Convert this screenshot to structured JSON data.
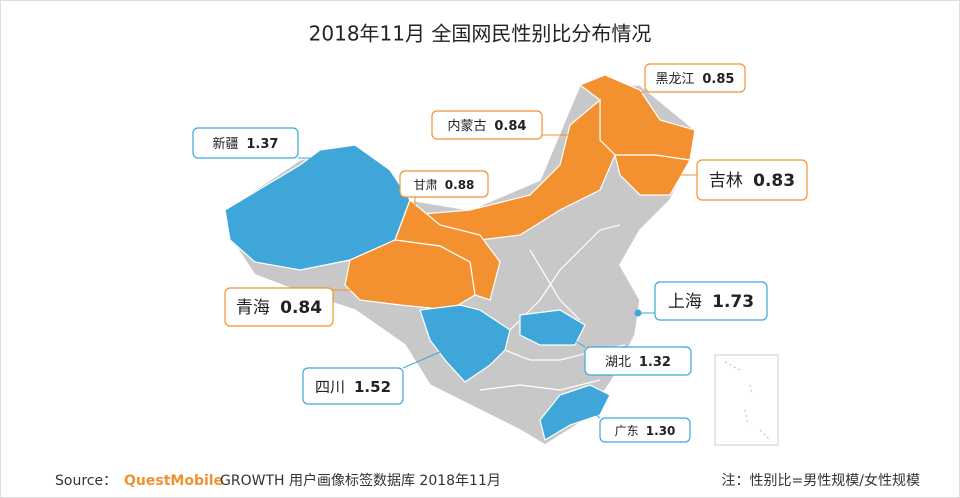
{
  "chart_data": {
    "type": "map",
    "title": "2018年11月 全国网民性别比分布情况",
    "categories": [
      "黑龙江",
      "内蒙古",
      "新疆",
      "甘肃",
      "吉林",
      "青海",
      "上海",
      "四川",
      "湖北",
      "广东"
    ],
    "values": [
      0.85,
      0.84,
      1.37,
      0.88,
      0.83,
      0.84,
      1.73,
      1.52,
      1.32,
      1.3
    ],
    "value_labels": [
      "0.85",
      "0.84",
      "1.37",
      "0.88",
      "0.83",
      "0.84",
      "1.73",
      "1.52",
      "1.32",
      "1.30"
    ],
    "colors": [
      "#f39130",
      "#f39130",
      "#3ea6d9",
      "#f39130",
      "#f39130",
      "#f39130",
      "#3ea6d9",
      "#3ea6d9",
      "#3ea6d9",
      "#3ea6d9"
    ],
    "source_label": "Source：",
    "source_brand": "QuestMobile",
    "source_text": "GROWTH 用户画像标签数据库 2018年11月",
    "note": "注：性别比=男性规模/女性规模"
  }
}
